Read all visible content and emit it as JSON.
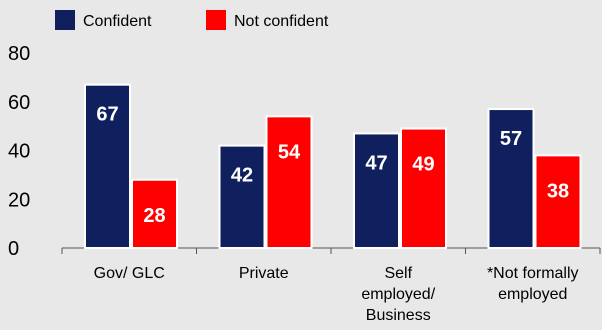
{
  "colors": {
    "background": "#e8e8e8",
    "confident": "#10205e",
    "not_confident": "#ff0000",
    "value_label_on_confident": "#ffffff",
    "value_label_on_not_confident": "#ffffff"
  },
  "chart_data": {
    "type": "bar",
    "title": "",
    "xlabel": "",
    "ylabel": "",
    "ylim": [
      0,
      80
    ],
    "yticks": [
      0,
      20,
      40,
      60,
      80
    ],
    "grid": false,
    "legend_position": "top-left",
    "categories": [
      [
        "Gov/ GLC"
      ],
      [
        "Private"
      ],
      [
        "Self",
        "employed/",
        "Business"
      ],
      [
        "*Not formally",
        "employed"
      ]
    ],
    "series": [
      {
        "name": "Confident",
        "values": [
          67,
          42,
          47,
          57
        ]
      },
      {
        "name": "Not confident",
        "values": [
          28,
          54,
          49,
          38
        ]
      }
    ]
  }
}
